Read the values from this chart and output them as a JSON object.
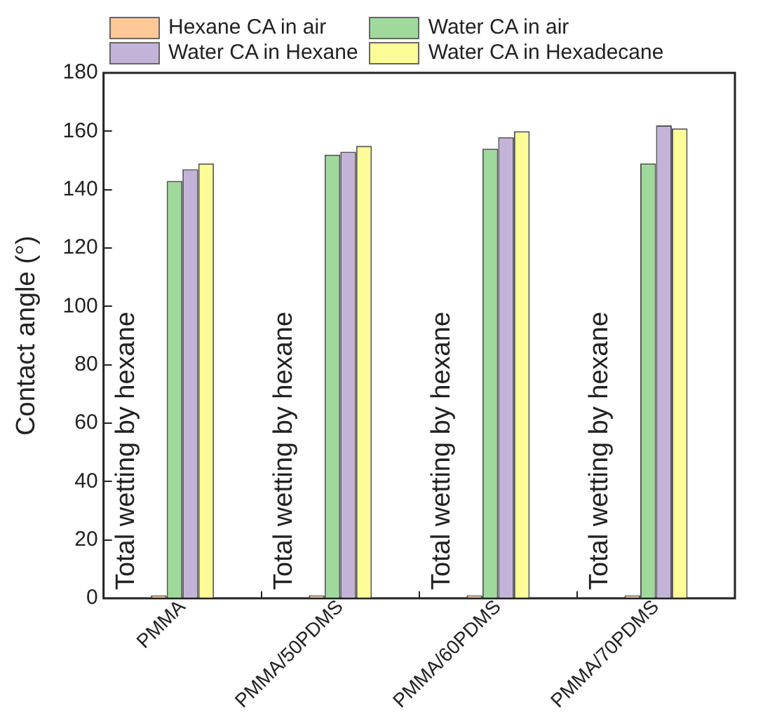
{
  "chart_data": {
    "type": "bar",
    "categories": [
      "PMMA",
      "PMMA/50PDMS",
      "PMMA/60PDMS",
      "PMMA/70PDMS"
    ],
    "series": [
      {
        "name": "Hexane CA in air",
        "color": "#ffc896",
        "values": [
          1,
          1,
          1,
          1
        ]
      },
      {
        "name": "Water CA in air",
        "color": "#9fd99b",
        "values": [
          143,
          152,
          154,
          149
        ]
      },
      {
        "name": "Water CA in Hexane",
        "color": "#c3b3d9",
        "values": [
          147,
          153,
          158,
          162
        ]
      },
      {
        "name": "Water CA in Hexadecane",
        "color": "#fdfd98",
        "values": [
          149,
          155,
          160,
          161
        ]
      }
    ],
    "ylabel": "Contact angle (°)",
    "ylim": [
      0,
      180
    ],
    "yticks": [
      0,
      20,
      40,
      60,
      80,
      100,
      120,
      140,
      160,
      180
    ],
    "annotations": [
      {
        "text": "Total wetting by hexane",
        "x": "PMMA",
        "y": 0
      },
      {
        "text": "Total wetting by hexane",
        "x": "PMMA/50PDMS",
        "y": 0
      },
      {
        "text": "Total wetting by hexane",
        "x": "PMMA/60PDMS",
        "y": 0
      },
      {
        "text": "Total wetting by hexane",
        "x": "PMMA/70PDMS",
        "y": 0
      }
    ],
    "legend": "top",
    "grid": false
  }
}
